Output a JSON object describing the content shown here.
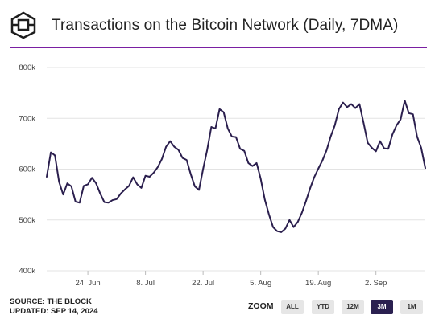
{
  "header": {
    "title": "Transactions on the Bitcoin Network (Daily, 7DMA)"
  },
  "footer": {
    "source": "SOURCE: THE BLOCK",
    "updated": "UPDATED: SEP 14, 2024"
  },
  "zoom": {
    "label": "ZOOM",
    "buttons": [
      "ALL",
      "YTD",
      "12M",
      "3M",
      "1M"
    ],
    "selected": "3M"
  },
  "colors": {
    "line": "#2b1f4e",
    "rule": "#7a1fa2",
    "grid": "#e3e3e3",
    "button_active": "#2a2050",
    "button": "#e6e6e6"
  },
  "chart_data": {
    "type": "line",
    "x_ticks": [
      "24. Jun",
      "8. Jul",
      "22. Jul",
      "5. Aug",
      "19. Aug",
      "2. Sep"
    ],
    "y_ticks": [
      "800k",
      "700k",
      "600k",
      "500k",
      "400k"
    ],
    "ylim": [
      400000,
      800000
    ],
    "grid": true,
    "x_start": "2024-06-14",
    "x_end": "2024-09-14",
    "series": [
      {
        "values": [
          585000,
          633000,
          627000,
          575000,
          550000,
          572000,
          566000,
          536000,
          534000,
          567000,
          570000,
          583000,
          572000,
          552000,
          535000,
          534000,
          539000,
          541000,
          552000,
          560000,
          567000,
          584000,
          570000,
          563000,
          587000,
          585000,
          593000,
          604000,
          620000,
          644000,
          655000,
          644000,
          638000,
          622000,
          618000,
          590000,
          566000,
          559000,
          600000,
          638000,
          683000,
          680000,
          718000,
          712000,
          680000,
          664000,
          663000,
          640000,
          636000,
          612000,
          606000,
          612000,
          581000,
          540000,
          511000,
          486000,
          478000,
          476000,
          483000,
          500000,
          486000,
          496000,
          514000,
          537000,
          562000,
          584000,
          601000,
          617000,
          637000,
          664000,
          686000,
          718000,
          731000,
          722000,
          728000,
          720000,
          728000,
          691000,
          652000,
          642000,
          635000,
          655000,
          641000,
          640000,
          668000,
          686000,
          698000,
          735000,
          710000,
          708000,
          664000,
          642000,
          602000
        ]
      }
    ]
  }
}
